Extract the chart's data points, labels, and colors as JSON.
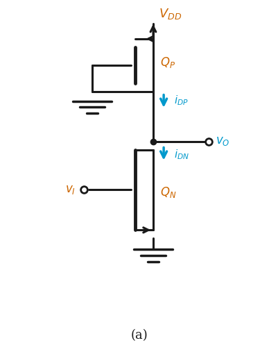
{
  "bg_color": "#ffffff",
  "line_color": "#1a1a1a",
  "label_color_orange": "#cc6600",
  "label_color_blue": "#0099cc",
  "figsize": [
    4.02,
    5.07
  ],
  "dpi": 100,
  "title_text": "(a)",
  "vdd_label": "$V_{DD}$",
  "qp_label": "$Q_P$",
  "qn_label": "$Q_N$",
  "idp_label": "$i_{DP}$",
  "idn_label": "$i_{DN}$",
  "vo_label": "$v_O$",
  "vi_label": "$v_I$"
}
